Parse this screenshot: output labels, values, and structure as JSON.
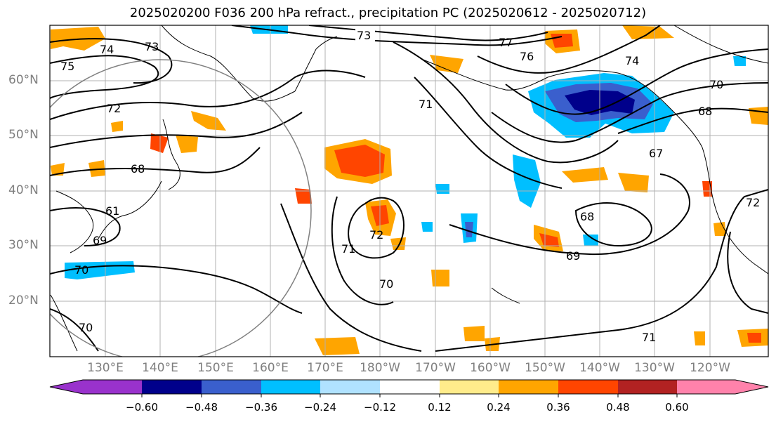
{
  "title": "2025020200 F036 200 hPa refract., precipitation PC (2025020612 - 2025020712)",
  "lat_labels": [
    "60°N",
    "50°N",
    "40°N",
    "30°N",
    "20°N"
  ],
  "lon_labels": [
    "130°E",
    "140°E",
    "150°E",
    "160°E",
    "170°E",
    "180°W",
    "170°W",
    "160°W",
    "150°W",
    "140°W",
    "130°W",
    "120°W"
  ],
  "colorbar": {
    "ticks": [
      "−0.60",
      "−0.48",
      "−0.36",
      "−0.24",
      "−0.12",
      "0.12",
      "0.24",
      "0.36",
      "0.48",
      "0.60"
    ],
    "colors": [
      "#9932cc",
      "#00008b",
      "#3a5fcd",
      "#00bfff",
      "#b0e2ff",
      "#ffffff",
      "#ffec8b",
      "#ffa500",
      "#ff4500",
      "#b22222",
      "#ff82ab"
    ]
  },
  "contour_labels": [
    "73",
    "77",
    "74",
    "73",
    "75",
    "76",
    "74",
    "72",
    "71",
    "70",
    "68",
    "68",
    "67",
    "61",
    "69",
    "70",
    "72",
    "68",
    "71",
    "70",
    "69",
    "70",
    "71",
    "72"
  ]
}
